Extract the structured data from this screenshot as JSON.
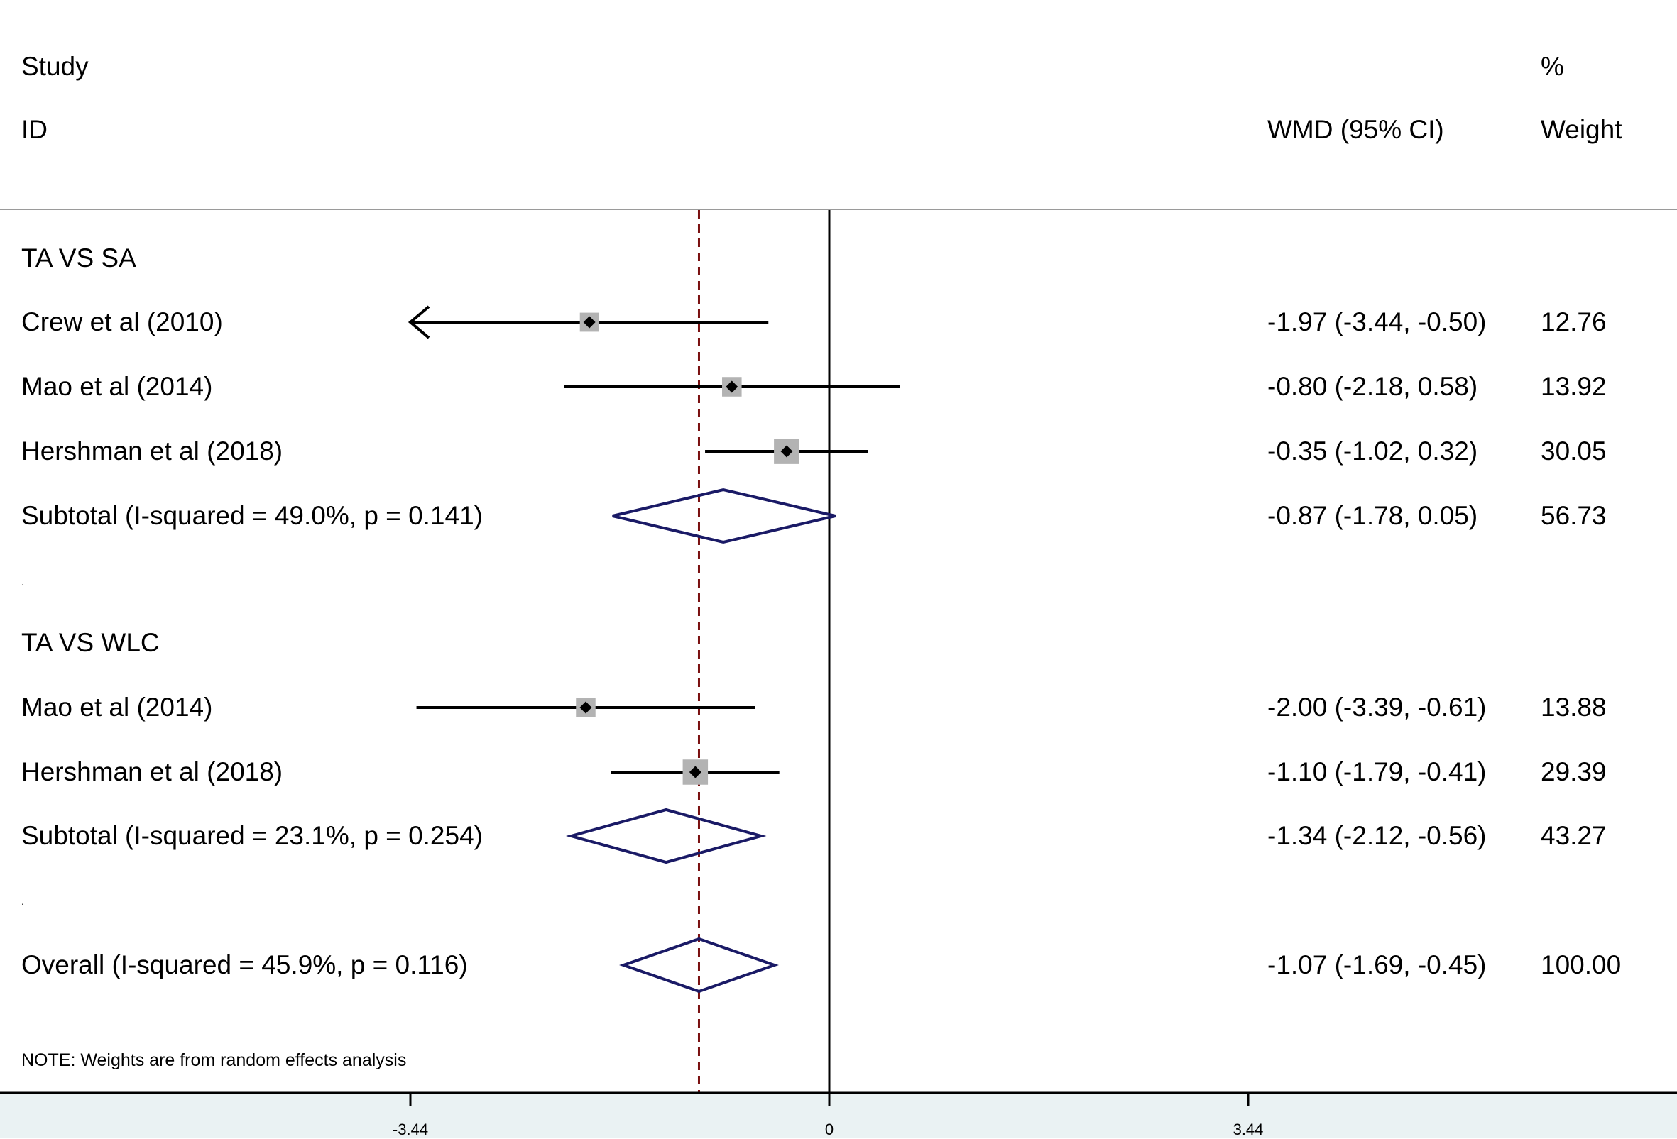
{
  "header": {
    "study_label": "Study",
    "id_label": "ID",
    "effect_label": "WMD (95% CI)",
    "pct_label": "%",
    "weight_label": "Weight"
  },
  "rows": [
    {
      "kind": "group",
      "label": "TA VS SA"
    },
    {
      "kind": "study",
      "label": "Crew et al (2010)",
      "ci_text": "-1.97 (-3.44, -0.50)",
      "weight": "12.76"
    },
    {
      "kind": "study",
      "label": "Mao et al (2014)",
      "ci_text": "-0.80 (-2.18, 0.58)",
      "weight": "13.92"
    },
    {
      "kind": "study",
      "label": "Hershman et al (2018)",
      "ci_text": "-0.35 (-1.02, 0.32)",
      "weight": "30.05"
    },
    {
      "kind": "subtotal",
      "label": "Subtotal  (I-squared = 49.0%, p = 0.141)",
      "ci_text": "-0.87 (-1.78, 0.05)",
      "weight": "56.73"
    },
    {
      "kind": "spacer",
      "label": "."
    },
    {
      "kind": "group",
      "label": "TA VS WLC"
    },
    {
      "kind": "study",
      "label": "Mao et al (2014)",
      "ci_text": "-2.00 (-3.39, -0.61)",
      "weight": "13.88"
    },
    {
      "kind": "study",
      "label": "Hershman et al (2018)",
      "ci_text": "-1.10 (-1.79, -0.41)",
      "weight": "29.39"
    },
    {
      "kind": "subtotal",
      "label": "Subtotal  (I-squared = 23.1%, p = 0.254)",
      "ci_text": "-1.34 (-2.12, -0.56)",
      "weight": "43.27"
    },
    {
      "kind": "spacer",
      "label": "."
    },
    {
      "kind": "overall",
      "label": "Overall  (I-squared = 45.9%, p = 0.116)",
      "ci_text": "-1.07 (-1.69, -0.45)",
      "weight": "100.00"
    }
  ],
  "footnote": "NOTE: Weights are from random effects analysis",
  "colors": {
    "ci_line": "#000000",
    "point": "#000000",
    "weight_box": "#b3b3b3",
    "diamond": "#1a1a66",
    "overall_line": "#7a1010",
    "zero_line": "#000000",
    "axis_band": "#eaf2f3"
  },
  "chart_data": {
    "type": "forest",
    "xlabel": "",
    "xlim": [
      -3.44,
      3.44
    ],
    "x_ticks": [
      -3.44,
      0,
      3.44
    ],
    "x_tick_labels": [
      "-3.44",
      "0",
      "3.44"
    ],
    "null_line": 0,
    "overall_estimate": -1.07,
    "studies": [
      {
        "group": "TA VS SA",
        "label": "Crew et al (2010)",
        "estimate": -1.97,
        "lower": -3.44,
        "upper": -0.5,
        "weight": 12.76,
        "truncated_lower": true
      },
      {
        "group": "TA VS SA",
        "label": "Mao et al (2014)",
        "estimate": -0.8,
        "lower": -2.18,
        "upper": 0.58,
        "weight": 13.92
      },
      {
        "group": "TA VS SA",
        "label": "Hershman et al (2018)",
        "estimate": -0.35,
        "lower": -1.02,
        "upper": 0.32,
        "weight": 30.05
      },
      {
        "group": "TA VS WLC",
        "label": "Mao et al (2014)",
        "estimate": -2.0,
        "lower": -3.39,
        "upper": -0.61,
        "weight": 13.88
      },
      {
        "group": "TA VS WLC",
        "label": "Hershman et al (2018)",
        "estimate": -1.1,
        "lower": -1.79,
        "upper": -0.41,
        "weight": 29.39
      }
    ],
    "subtotals": [
      {
        "group": "TA VS SA",
        "estimate": -0.87,
        "lower": -1.78,
        "upper": 0.05,
        "weight": 56.73,
        "i_squared": 49.0,
        "p": 0.141
      },
      {
        "group": "TA VS WLC",
        "estimate": -1.34,
        "lower": -2.12,
        "upper": -0.56,
        "weight": 43.27,
        "i_squared": 23.1,
        "p": 0.254
      }
    ],
    "overall": {
      "estimate": -1.07,
      "lower": -1.69,
      "upper": -0.45,
      "weight": 100.0,
      "i_squared": 45.9,
      "p": 0.116
    }
  }
}
